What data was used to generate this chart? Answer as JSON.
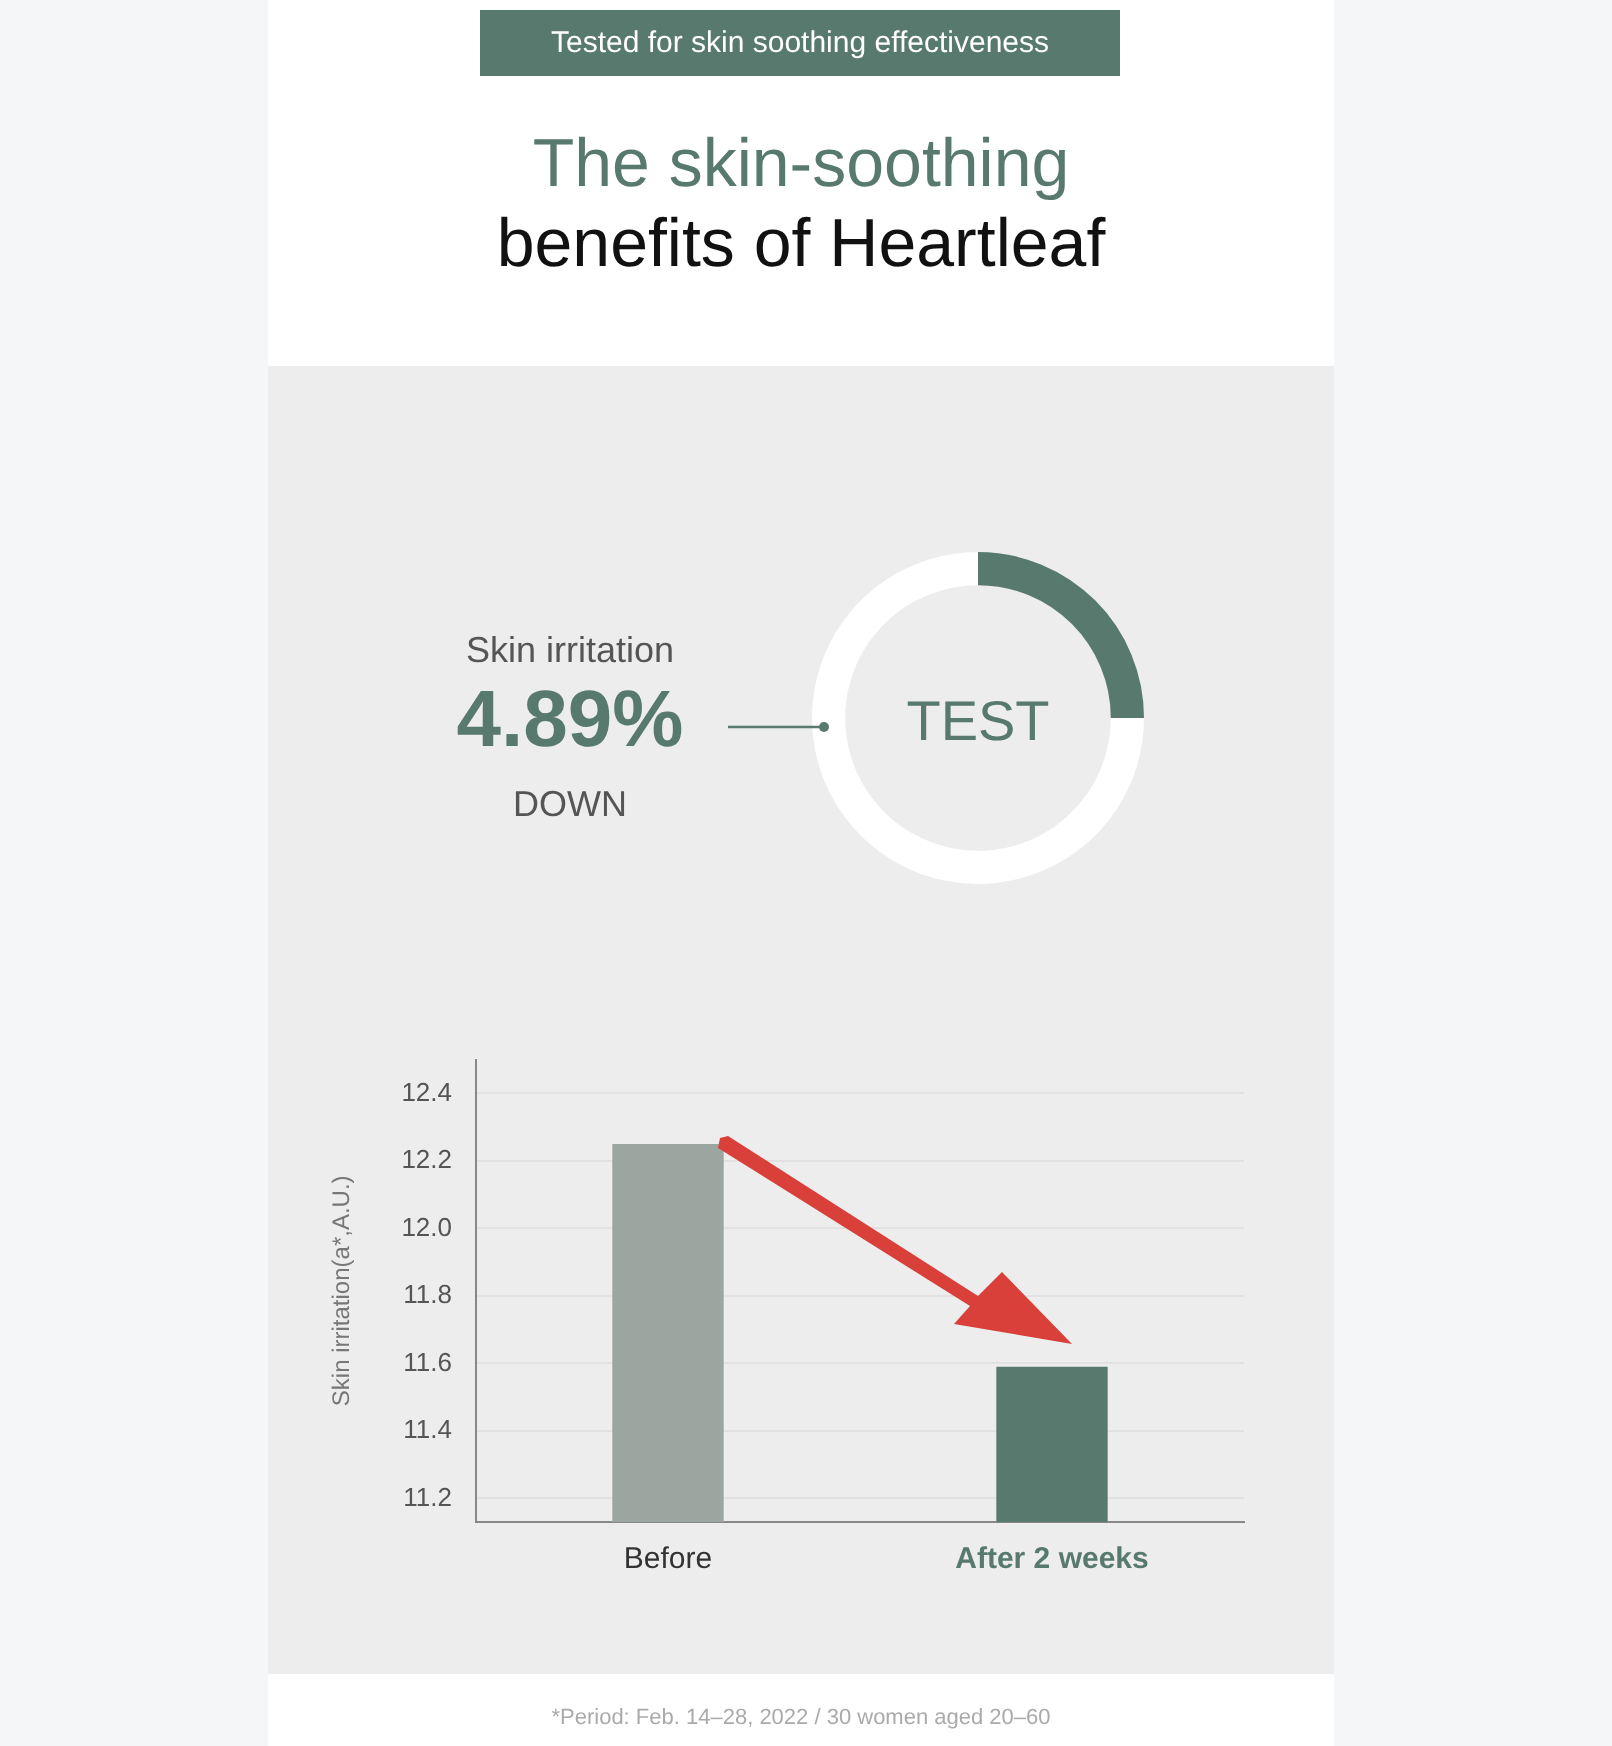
{
  "chart_data": [
    {
      "type": "donut",
      "subtitle": "Tested for skin soothing effectiveness",
      "title": "The skin-soothing\nbenefits of Heartleaf",
      "categories": [
        null,
        null
      ],
      "values": [
        25,
        75
      ],
      "colors": [
        "#587a6e",
        "#ffffff"
      ],
      "annotations": [
        "Skin irritation",
        "4.89%",
        "DOWN",
        "TEST"
      ]
    },
    {
      "type": "bar",
      "categories": [
        "Before",
        "After 2 weeks"
      ],
      "values": [
        12.25,
        11.59
      ],
      "colors": [
        "#9aa69f",
        "#587a6e"
      ],
      "ylabel": "Skin irritation(a*,A.U.)",
      "ylim": [
        11.13,
        12.5
      ],
      "yticks": [
        {
          "value": 11.2,
          "label": "11.2"
        },
        {
          "value": 11.4,
          "label": "11.4"
        },
        {
          "value": 11.6,
          "label": "11.6"
        },
        {
          "value": 11.8,
          "label": "11.8"
        },
        {
          "value": 12.0,
          "label": "12.0"
        },
        {
          "value": 12.2,
          "label": "12.2"
        },
        {
          "value": 12.4,
          "label": "12.4"
        }
      ],
      "grid": "y",
      "annotations": [
        "*Period: Feb. 14–28, 2022 / 30 women aged 20–60"
      ]
    }
  ]
}
